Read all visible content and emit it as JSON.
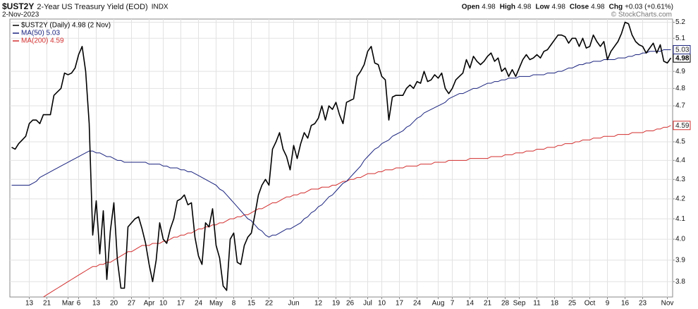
{
  "chart_data": {
    "type": "line",
    "symbol": "$UST2Y",
    "title": "2-Year US Treasury Yield (EOD)",
    "exchange": "INDX",
    "date": "2-Nov-2023",
    "quote": [
      {
        "label": "Open",
        "value": "4.98"
      },
      {
        "label": "High",
        "value": "4.98"
      },
      {
        "label": "Low",
        "value": "4.98"
      },
      {
        "label": "Close",
        "value": "4.98"
      },
      {
        "label": "Chg",
        "value": "+0.03 (+0.61%)"
      }
    ],
    "credit": "© StockCharts.com",
    "log_scale": true,
    "grid": true,
    "legend": "upper-left",
    "y_axis_side": "right",
    "ylim": [
      3.73,
      5.22
    ],
    "yticks": [
      3.8,
      3.9,
      {
        "value": 4,
        "label": "4.0"
      },
      4.1,
      4.2,
      4.3,
      4.4,
      4.5,
      4.7,
      4.8,
      4.9,
      5.1,
      5.2
    ],
    "categories": [
      null,
      null,
      null,
      null,
      null,
      "13",
      null,
      null,
      null,
      null,
      "21",
      null,
      null,
      null,
      null,
      null,
      "Mar",
      null,
      null,
      "6",
      null,
      null,
      null,
      null,
      "13",
      null,
      null,
      null,
      null,
      "20",
      null,
      null,
      null,
      null,
      "27",
      null,
      null,
      null,
      null,
      "Apr",
      null,
      null,
      null,
      "10",
      null,
      null,
      null,
      null,
      "17",
      null,
      null,
      null,
      null,
      "24",
      null,
      null,
      null,
      null,
      "May",
      null,
      null,
      null,
      null,
      "8",
      null,
      null,
      null,
      null,
      "15",
      null,
      null,
      null,
      null,
      "22",
      null,
      null,
      null,
      null,
      null,
      null,
      "Jun",
      null,
      null,
      null,
      null,
      null,
      null,
      "12",
      null,
      null,
      null,
      null,
      "19",
      null,
      null,
      null,
      "26",
      null,
      null,
      null,
      null,
      "Jul",
      null,
      null,
      null,
      "10",
      null,
      null,
      null,
      null,
      "17",
      null,
      null,
      null,
      null,
      "24",
      null,
      null,
      null,
      null,
      null,
      "Aug",
      null,
      null,
      null,
      "7",
      null,
      null,
      null,
      null,
      "14",
      null,
      null,
      null,
      null,
      "21",
      null,
      null,
      null,
      null,
      "28",
      null,
      null,
      null,
      "Sep",
      null,
      null,
      null,
      null,
      "11",
      null,
      null,
      null,
      null,
      "18",
      null,
      null,
      null,
      null,
      "25",
      null,
      null,
      null,
      null,
      "Oct",
      null,
      null,
      null,
      null,
      "9",
      null,
      null,
      null,
      null,
      "16",
      null,
      null,
      null,
      null,
      "23",
      null,
      null,
      null,
      null,
      null,
      null,
      "Nov",
      null
    ],
    "series": [
      {
        "name": "$UST2Y (Daily) 4.98 (2 Nov)",
        "color": "#000000",
        "width": 1.6,
        "values": [
          4.47,
          4.46,
          4.49,
          4.51,
          4.53,
          4.6,
          4.62,
          4.62,
          4.6,
          4.65,
          4.65,
          4.65,
          4.76,
          4.78,
          4.8,
          4.89,
          4.88,
          4.89,
          4.92,
          5.0,
          5.05,
          4.9,
          4.6,
          4.02,
          4.19,
          3.93,
          4.14,
          3.81,
          4.04,
          4.18,
          3.9,
          3.77,
          3.77,
          4.06,
          4.08,
          4.1,
          4.11,
          4.05,
          3.98,
          3.88,
          3.8,
          3.9,
          4.08,
          4.0,
          3.98,
          4.05,
          4.1,
          4.19,
          4.2,
          4.22,
          4.17,
          4.18,
          4.01,
          3.92,
          3.88,
          4.08,
          4.06,
          4.15,
          3.97,
          3.91,
          3.78,
          3.76,
          4.0,
          4.03,
          3.89,
          3.88,
          3.97,
          4.01,
          4.03,
          4.12,
          4.22,
          4.27,
          4.3,
          4.27,
          4.46,
          4.5,
          4.55,
          4.46,
          4.42,
          4.35,
          4.48,
          4.41,
          4.49,
          4.55,
          4.52,
          4.59,
          4.6,
          4.63,
          4.7,
          4.62,
          4.7,
          4.68,
          4.72,
          4.65,
          4.6,
          4.72,
          4.73,
          4.74,
          4.87,
          4.9,
          4.94,
          5.02,
          5.05,
          4.95,
          4.94,
          4.87,
          4.85,
          4.62,
          4.75,
          4.76,
          4.76,
          4.76,
          4.8,
          4.82,
          4.8,
          4.84,
          4.83,
          4.9,
          4.84,
          4.85,
          4.88,
          4.86,
          4.89,
          4.8,
          4.77,
          4.8,
          4.85,
          4.87,
          4.89,
          4.97,
          4.92,
          4.99,
          4.96,
          4.94,
          4.96,
          4.99,
          5.01,
          4.96,
          4.98,
          4.9,
          4.92,
          4.87,
          4.91,
          4.87,
          4.92,
          4.97,
          5.0,
          4.97,
          4.98,
          5.0,
          4.98,
          5.02,
          5.03,
          5.06,
          5.09,
          5.12,
          5.12,
          5.11,
          5.07,
          5.1,
          5.1,
          5.05,
          5.1,
          5.04,
          5.05,
          5.12,
          5.08,
          5.05,
          5.08,
          4.97,
          5.02,
          5.05,
          5.08,
          5.13,
          5.2,
          5.19,
          5.12,
          5.08,
          5.06,
          5.05,
          5.01,
          5.04,
          5.07,
          5.01,
          5.06,
          4.96,
          4.95,
          4.98
        ]
      },
      {
        "name": "MA(50) 5.03",
        "color": "#1a237e",
        "width": 1,
        "values": [
          4.27,
          4.27,
          4.27,
          4.27,
          4.27,
          4.27,
          4.28,
          4.29,
          4.31,
          4.32,
          4.33,
          4.34,
          4.35,
          4.36,
          4.37,
          4.38,
          4.39,
          4.4,
          4.41,
          4.42,
          4.43,
          4.44,
          4.45,
          4.45,
          4.44,
          4.44,
          4.43,
          4.42,
          4.42,
          4.41,
          4.4,
          4.4,
          4.39,
          4.39,
          4.39,
          4.39,
          4.39,
          4.39,
          4.39,
          4.38,
          4.38,
          4.38,
          4.38,
          4.37,
          4.37,
          4.36,
          4.36,
          4.36,
          4.35,
          4.35,
          4.34,
          4.34,
          4.33,
          4.32,
          4.31,
          4.3,
          4.29,
          4.28,
          4.27,
          4.25,
          4.24,
          4.22,
          4.2,
          4.18,
          4.16,
          4.14,
          4.12,
          4.1,
          4.09,
          4.07,
          4.05,
          4.04,
          4.02,
          4.01,
          4.02,
          4.02,
          4.03,
          4.04,
          4.05,
          4.05,
          4.06,
          4.07,
          4.08,
          4.1,
          4.11,
          4.13,
          4.14,
          4.16,
          4.17,
          4.19,
          4.21,
          4.22,
          4.24,
          4.26,
          4.28,
          4.29,
          4.31,
          4.33,
          4.35,
          4.37,
          4.4,
          4.42,
          4.44,
          4.46,
          4.47,
          4.49,
          4.5,
          4.51,
          4.53,
          4.54,
          4.55,
          4.56,
          4.58,
          4.59,
          4.61,
          4.63,
          4.64,
          4.66,
          4.67,
          4.68,
          4.69,
          4.7,
          4.71,
          4.72,
          4.74,
          4.75,
          4.76,
          4.77,
          4.77,
          4.78,
          4.79,
          4.8,
          4.8,
          4.81,
          4.82,
          4.83,
          4.83,
          4.84,
          4.84,
          4.85,
          4.85,
          4.86,
          4.86,
          4.86,
          4.87,
          4.87,
          4.87,
          4.87,
          4.88,
          4.88,
          4.88,
          4.88,
          4.89,
          4.89,
          4.89,
          4.9,
          4.9,
          4.91,
          4.92,
          4.92,
          4.93,
          4.94,
          4.94,
          4.95,
          4.95,
          4.96,
          4.96,
          4.96,
          4.97,
          4.97,
          4.97,
          4.97,
          4.98,
          4.98,
          4.98,
          4.99,
          4.99,
          5.0,
          5.0,
          5.01,
          5.01,
          5.02,
          5.02,
          5.02,
          5.02,
          5.03,
          5.03,
          5.03
        ]
      },
      {
        "name": "MA(200) 4.59",
        "color": "#d32f2f",
        "width": 1,
        "values": [
          null,
          null,
          null,
          null,
          null,
          null,
          null,
          null,
          null,
          3.73,
          3.74,
          3.75,
          3.76,
          3.77,
          3.78,
          3.79,
          3.8,
          3.81,
          3.82,
          3.83,
          3.84,
          3.85,
          3.86,
          3.87,
          3.87,
          3.88,
          3.88,
          3.89,
          3.89,
          3.9,
          3.91,
          3.92,
          3.93,
          3.94,
          3.94,
          3.95,
          3.96,
          3.97,
          3.97,
          3.97,
          3.98,
          3.98,
          3.98,
          3.99,
          3.99,
          4.0,
          4.01,
          4.01,
          4.02,
          4.02,
          4.03,
          4.03,
          4.04,
          4.05,
          4.05,
          4.06,
          4.06,
          4.07,
          4.07,
          4.08,
          4.08,
          4.09,
          4.1,
          4.1,
          4.11,
          4.11,
          4.12,
          4.12,
          4.13,
          4.14,
          4.15,
          4.15,
          4.16,
          4.17,
          4.18,
          4.18,
          4.19,
          4.2,
          4.21,
          4.21,
          4.22,
          4.22,
          4.23,
          4.23,
          4.24,
          4.25,
          4.25,
          4.25,
          4.26,
          4.26,
          4.26,
          4.27,
          4.27,
          4.28,
          4.29,
          4.29,
          4.3,
          4.3,
          4.31,
          4.31,
          4.32,
          4.33,
          4.33,
          4.33,
          4.34,
          4.34,
          4.35,
          4.35,
          4.35,
          4.36,
          4.36,
          4.36,
          4.37,
          4.37,
          4.37,
          4.37,
          4.38,
          4.38,
          4.38,
          4.38,
          4.39,
          4.39,
          4.39,
          4.39,
          4.4,
          4.4,
          4.4,
          4.4,
          4.4,
          4.4,
          4.41,
          4.41,
          4.41,
          4.41,
          4.41,
          4.41,
          4.42,
          4.42,
          4.42,
          4.42,
          4.43,
          4.43,
          4.43,
          4.44,
          4.44,
          4.44,
          4.45,
          4.45,
          4.45,
          4.46,
          4.46,
          4.46,
          4.47,
          4.47,
          4.47,
          4.48,
          4.48,
          4.49,
          4.49,
          4.49,
          4.5,
          4.5,
          4.51,
          4.51,
          4.51,
          4.52,
          4.52,
          4.52,
          4.53,
          4.53,
          4.53,
          4.53,
          4.54,
          4.54,
          4.54,
          4.54,
          4.55,
          4.55,
          4.55,
          4.55,
          4.56,
          4.56,
          4.56,
          4.57,
          4.57,
          4.58,
          4.58,
          4.59
        ]
      }
    ]
  }
}
